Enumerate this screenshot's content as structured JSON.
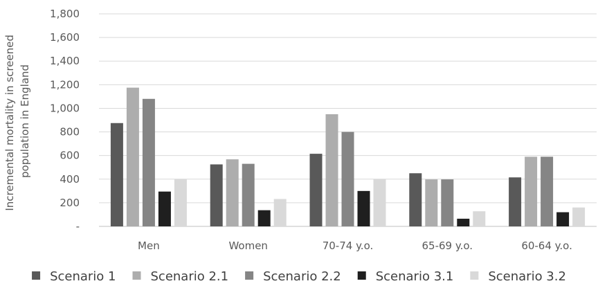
{
  "chart_data": {
    "type": "bar",
    "ylabel": "Incremental mortality in screened population in England",
    "ylabel_lines": [
      "Incremental mortality in screened",
      "population in England"
    ],
    "ylim": [
      0,
      1800
    ],
    "yticks": [
      0,
      200,
      400,
      600,
      800,
      1000,
      1200,
      1400,
      1600,
      1800
    ],
    "ytick_labels": [
      "-",
      "200",
      "400",
      "600",
      "800",
      "1,000",
      "1,200",
      "1,400",
      "1,600",
      "1,800"
    ],
    "grid": true,
    "legend_position": "bottom",
    "categories": [
      "Men",
      "Women",
      "70-74 y.o.",
      "65-69 y.o.",
      "60-64 y.o."
    ],
    "series": [
      {
        "name": "Scenario 1",
        "color": "#595959",
        "values": [
          875,
          525,
          615,
          450,
          415
        ]
      },
      {
        "name": "Scenario 2.1",
        "color": "#adadad",
        "values": [
          1175,
          568,
          950,
          398,
          590
        ]
      },
      {
        "name": "Scenario 2.2",
        "color": "#858585",
        "values": [
          1080,
          530,
          800,
          398,
          590
        ]
      },
      {
        "name": "Scenario 3.1",
        "color": "#1f1f1f",
        "values": [
          295,
          137,
          300,
          65,
          120
        ]
      },
      {
        "name": "Scenario 3.2",
        "color": "#d9d9d9",
        "values": [
          400,
          232,
          400,
          128,
          160
        ]
      }
    ]
  }
}
